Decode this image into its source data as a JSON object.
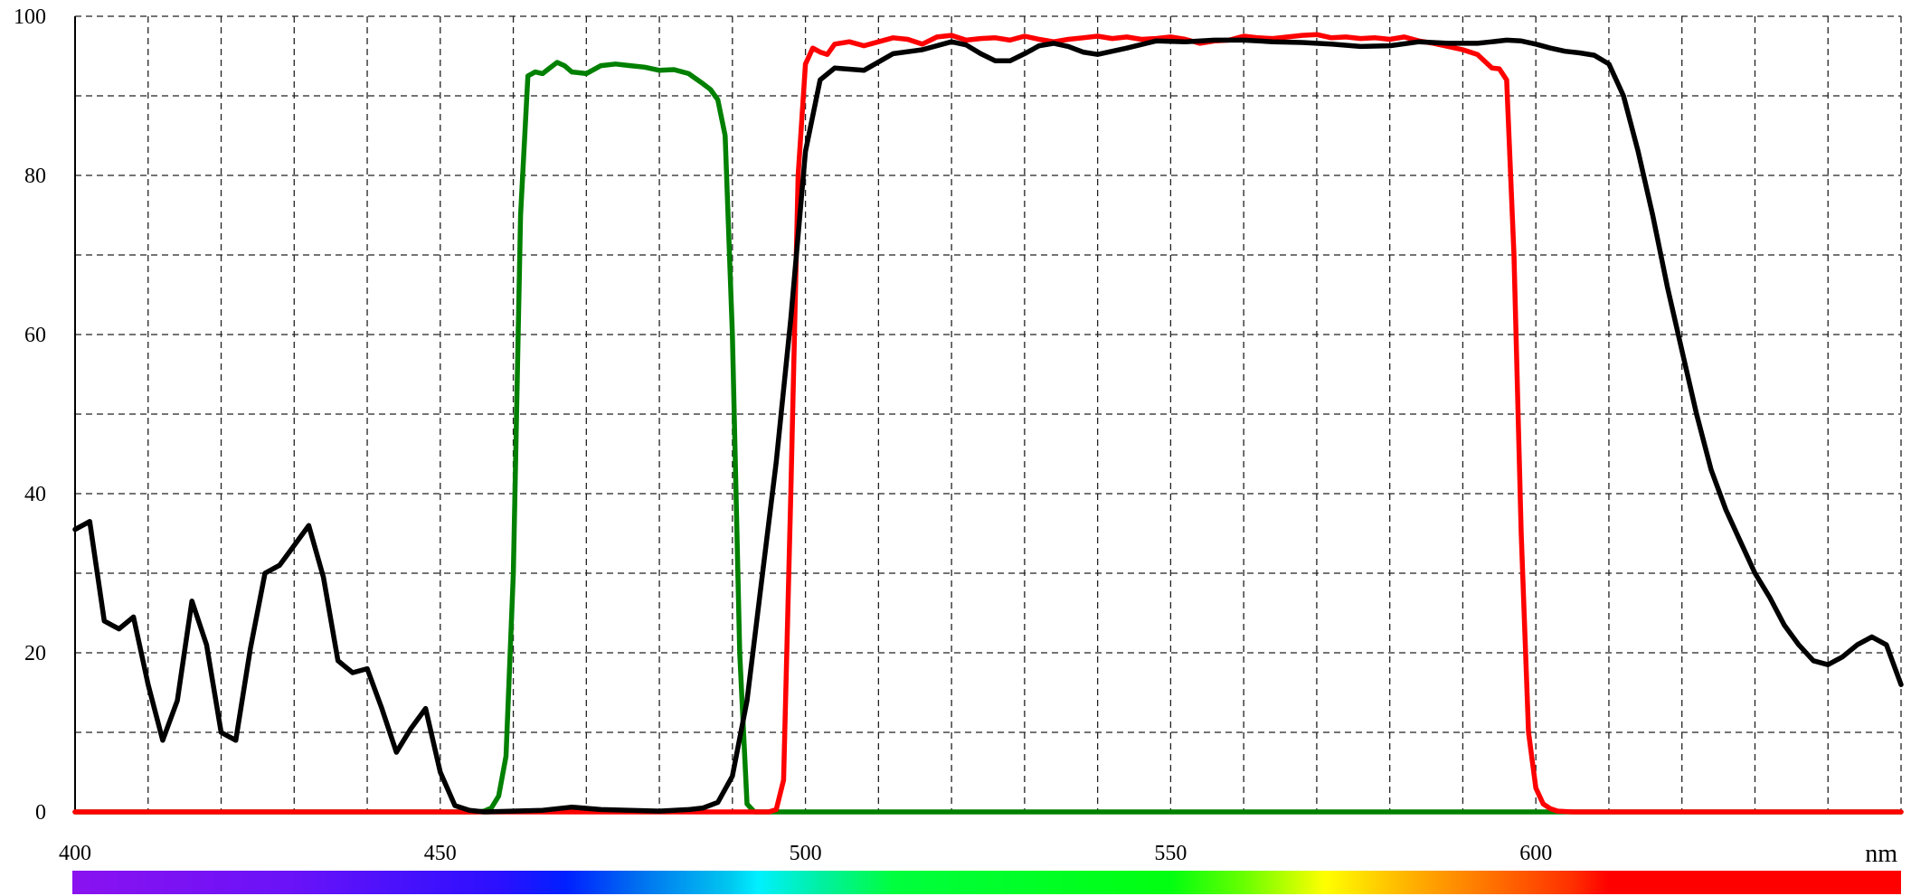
{
  "chart_data": {
    "type": "line",
    "title": "",
    "xlabel": "",
    "ylabel": "",
    "x_unit": "nm",
    "xlim": [
      400,
      650
    ],
    "ylim": [
      0,
      100
    ],
    "x_ticks": [
      400,
      450,
      500,
      550,
      600
    ],
    "x_tick_labels": [
      "400",
      "450",
      "500",
      "550",
      "600"
    ],
    "x_gridlines": [
      410,
      420,
      430,
      440,
      450,
      460,
      470,
      480,
      490,
      500,
      510,
      520,
      530,
      540,
      550,
      560,
      570,
      580,
      590,
      600,
      610,
      620,
      630,
      640,
      650
    ],
    "y_ticks": [
      0,
      20,
      40,
      60,
      80,
      100
    ],
    "y_tick_labels": [
      "0",
      "20",
      "40",
      "60",
      "80",
      "100"
    ],
    "y_gridlines": [
      10,
      20,
      30,
      40,
      50,
      60,
      70,
      80,
      90,
      100
    ],
    "grid": true,
    "grid_style": "dashed",
    "legend": "none",
    "spectrum_bar": true,
    "series": [
      {
        "color": "#008000",
        "x": [
          400,
          455,
          456,
          457,
          458,
          459,
          460,
          461,
          462,
          463,
          464,
          465,
          466,
          467,
          468,
          470,
          472,
          474,
          476,
          478,
          480,
          482,
          484,
          486,
          487,
          488,
          489,
          490,
          491,
          492,
          493,
          650
        ],
        "y": [
          0,
          0,
          0.1,
          0.5,
          2,
          7,
          30,
          75,
          92.5,
          93,
          92.8,
          93.5,
          94.2,
          93.8,
          93,
          92.8,
          93.8,
          94,
          93.8,
          93.6,
          93.2,
          93.3,
          92.8,
          91.5,
          90.8,
          89.5,
          85,
          60,
          20,
          1,
          0,
          0
        ]
      },
      {
        "color": "#ff0000",
        "x": [
          400,
          495,
          496,
          497,
          498,
          499,
          500,
          501,
          502,
          503,
          504,
          506,
          508,
          510,
          512,
          514,
          516,
          518,
          520,
          522,
          524,
          526,
          528,
          530,
          532,
          534,
          536,
          538,
          540,
          542,
          544,
          546,
          548,
          550,
          552,
          554,
          556,
          558,
          560,
          562,
          564,
          566,
          568,
          570,
          572,
          574,
          576,
          578,
          580,
          582,
          584,
          586,
          588,
          590,
          592,
          594,
          595,
          596,
          597,
          598,
          599,
          600,
          601,
          602,
          603,
          605,
          650
        ],
        "y": [
          0,
          0,
          0.3,
          4,
          40,
          80,
          94,
          96,
          95.5,
          95.2,
          96.5,
          96.8,
          96.3,
          96.8,
          97.3,
          97.1,
          96.5,
          97.4,
          97.6,
          97,
          97.2,
          97.3,
          97,
          97.5,
          97.1,
          96.8,
          97.1,
          97.3,
          97.5,
          97.2,
          97.4,
          97.1,
          97.2,
          97.4,
          97.1,
          96.6,
          96.9,
          97,
          97.5,
          97.3,
          97.2,
          97.4,
          97.6,
          97.7,
          97.3,
          97.4,
          97.2,
          97.3,
          97.1,
          97.4,
          96.9,
          96.6,
          96.2,
          95.8,
          95.2,
          93.5,
          93.4,
          92,
          70,
          35,
          10,
          3,
          1,
          0.4,
          0.1,
          0,
          0
        ]
      },
      {
        "color": "#000000",
        "x": [
          400,
          402,
          404,
          406,
          408,
          410,
          412,
          414,
          416,
          418,
          420,
          422,
          424,
          426,
          428,
          430,
          432,
          434,
          436,
          438,
          440,
          442,
          444,
          446,
          448,
          450,
          452,
          454,
          456,
          460,
          464,
          468,
          472,
          476,
          480,
          484,
          486,
          488,
          490,
          492,
          494,
          496,
          498,
          500,
          502,
          504,
          508,
          512,
          516,
          520,
          522,
          524,
          526,
          528,
          530,
          532,
          534,
          536,
          538,
          540,
          544,
          548,
          552,
          556,
          560,
          564,
          568,
          572,
          576,
          580,
          584,
          588,
          592,
          594,
          596,
          598,
          600,
          602,
          604,
          606,
          608,
          610,
          612,
          614,
          616,
          618,
          620,
          622,
          624,
          626,
          628,
          630,
          632,
          634,
          636,
          638,
          640,
          642,
          644,
          646,
          648,
          650
        ],
        "y": [
          35.5,
          36.5,
          24,
          23,
          24.5,
          16,
          9,
          14,
          26.5,
          21,
          10,
          9,
          20.5,
          30,
          31,
          33.5,
          36,
          29.5,
          19,
          17.5,
          18,
          13,
          7.5,
          10.5,
          13,
          5,
          0.8,
          0.2,
          0,
          0.1,
          0.2,
          0.6,
          0.3,
          0.2,
          0.1,
          0.3,
          0.5,
          1.2,
          4.5,
          14,
          29,
          44,
          62,
          83,
          92,
          93.5,
          93.2,
          95.3,
          95.8,
          96.8,
          96.4,
          95.3,
          94.4,
          94.4,
          95.3,
          96.3,
          96.6,
          96.2,
          95.5,
          95.2,
          96,
          96.9,
          96.8,
          97,
          97,
          96.8,
          96.7,
          96.5,
          96.2,
          96.3,
          96.8,
          96.6,
          96.6,
          96.8,
          97,
          96.9,
          96.5,
          96,
          95.6,
          95.4,
          95.1,
          94,
          90,
          83,
          75,
          66,
          58,
          50,
          43,
          38,
          34,
          30,
          27,
          23.5,
          21,
          19,
          18.5,
          19.5,
          21,
          22,
          21,
          16
        ]
      }
    ]
  }
}
